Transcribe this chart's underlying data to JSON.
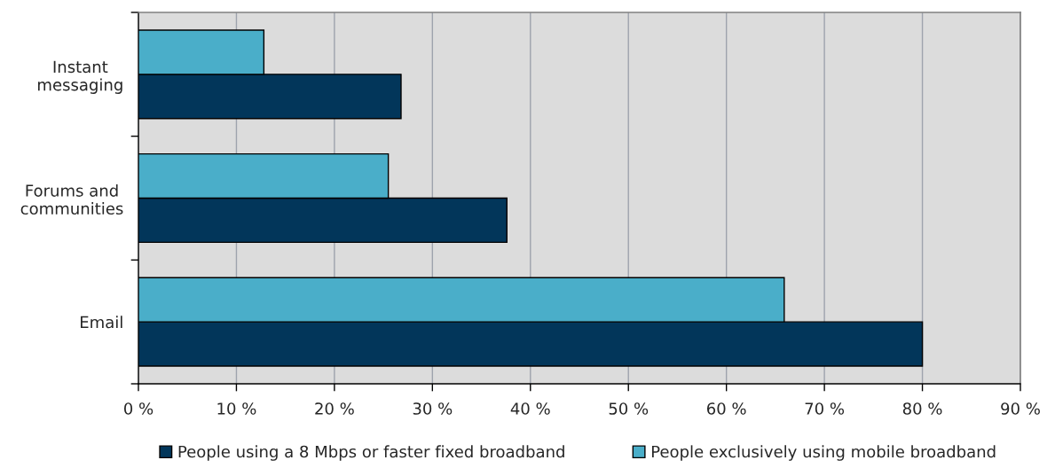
{
  "chart_data": {
    "type": "bar",
    "orientation": "horizontal",
    "categories": [
      "Instant\nmessaging",
      "Forums and\ncommunities",
      "Email"
    ],
    "series": [
      {
        "name": "People using a 8 Mbps or faster fixed broadband",
        "color": "#02365a",
        "values": [
          26.8,
          37.6,
          80.0
        ]
      },
      {
        "name": "People exclusively using mobile broadband",
        "color": "#4aaec9",
        "values": [
          12.8,
          25.5,
          65.9
        ]
      }
    ],
    "xlim": [
      0,
      90
    ],
    "xticks": [
      {
        "value": 0,
        "label": "0 %"
      },
      {
        "value": 10,
        "label": "10 %"
      },
      {
        "value": 20,
        "label": "20 %"
      },
      {
        "value": 30,
        "label": "30 %"
      },
      {
        "value": 40,
        "label": "40 %"
      },
      {
        "value": 50,
        "label": "50 %"
      },
      {
        "value": 60,
        "label": "60 %"
      },
      {
        "value": 70,
        "label": "70 %"
      },
      {
        "value": 80,
        "label": "80 %"
      },
      {
        "value": 90,
        "label": "90 %"
      }
    ],
    "grid": "x",
    "legend": "bottom"
  }
}
